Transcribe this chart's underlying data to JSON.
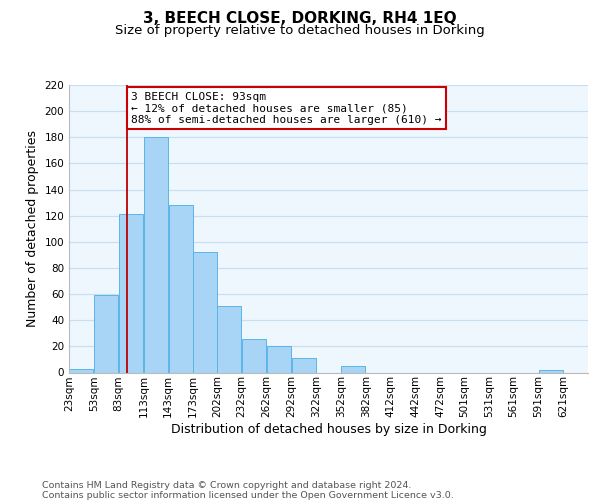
{
  "title": "3, BEECH CLOSE, DORKING, RH4 1EQ",
  "subtitle": "Size of property relative to detached houses in Dorking",
  "xlabel": "Distribution of detached houses by size in Dorking",
  "ylabel": "Number of detached properties",
  "bar_left_edges": [
    23,
    53,
    83,
    113,
    143,
    173,
    202,
    232,
    262,
    292,
    322,
    352,
    382,
    412,
    442,
    472,
    501,
    531,
    561,
    591
  ],
  "bar_heights": [
    3,
    59,
    121,
    180,
    128,
    92,
    51,
    26,
    20,
    11,
    0,
    5,
    0,
    0,
    0,
    0,
    0,
    0,
    0,
    2
  ],
  "bar_widths": [
    30,
    30,
    30,
    30,
    30,
    29,
    30,
    30,
    30,
    30,
    30,
    30,
    30,
    30,
    30,
    29,
    30,
    30,
    30,
    30
  ],
  "tick_labels": [
    "23sqm",
    "53sqm",
    "83sqm",
    "113sqm",
    "143sqm",
    "173sqm",
    "202sqm",
    "232sqm",
    "262sqm",
    "292sqm",
    "322sqm",
    "352sqm",
    "382sqm",
    "412sqm",
    "442sqm",
    "472sqm",
    "501sqm",
    "531sqm",
    "561sqm",
    "591sqm",
    "621sqm"
  ],
  "bar_color": "#a8d4f5",
  "bar_edge_color": "#5ab4e8",
  "grid_color": "#c8dff0",
  "background_color": "#eef6fe",
  "property_line_x": 93,
  "property_line_color": "#bb0000",
  "annotation_title": "3 BEECH CLOSE: 93sqm",
  "annotation_line1": "← 12% of detached houses are smaller (85)",
  "annotation_line2": "88% of semi-detached houses are larger (610) →",
  "annotation_box_color": "#ffffff",
  "annotation_box_edge_color": "#cc0000",
  "ylim": [
    0,
    220
  ],
  "yticks": [
    0,
    20,
    40,
    60,
    80,
    100,
    120,
    140,
    160,
    180,
    200,
    220
  ],
  "xlim_left": 23,
  "xlim_right": 651,
  "footer_line1": "Contains HM Land Registry data © Crown copyright and database right 2024.",
  "footer_line2": "Contains public sector information licensed under the Open Government Licence v3.0.",
  "title_fontsize": 11,
  "subtitle_fontsize": 9.5,
  "axis_label_fontsize": 9,
  "tick_fontsize": 7.5,
  "annotation_fontsize": 8,
  "footer_fontsize": 6.8
}
